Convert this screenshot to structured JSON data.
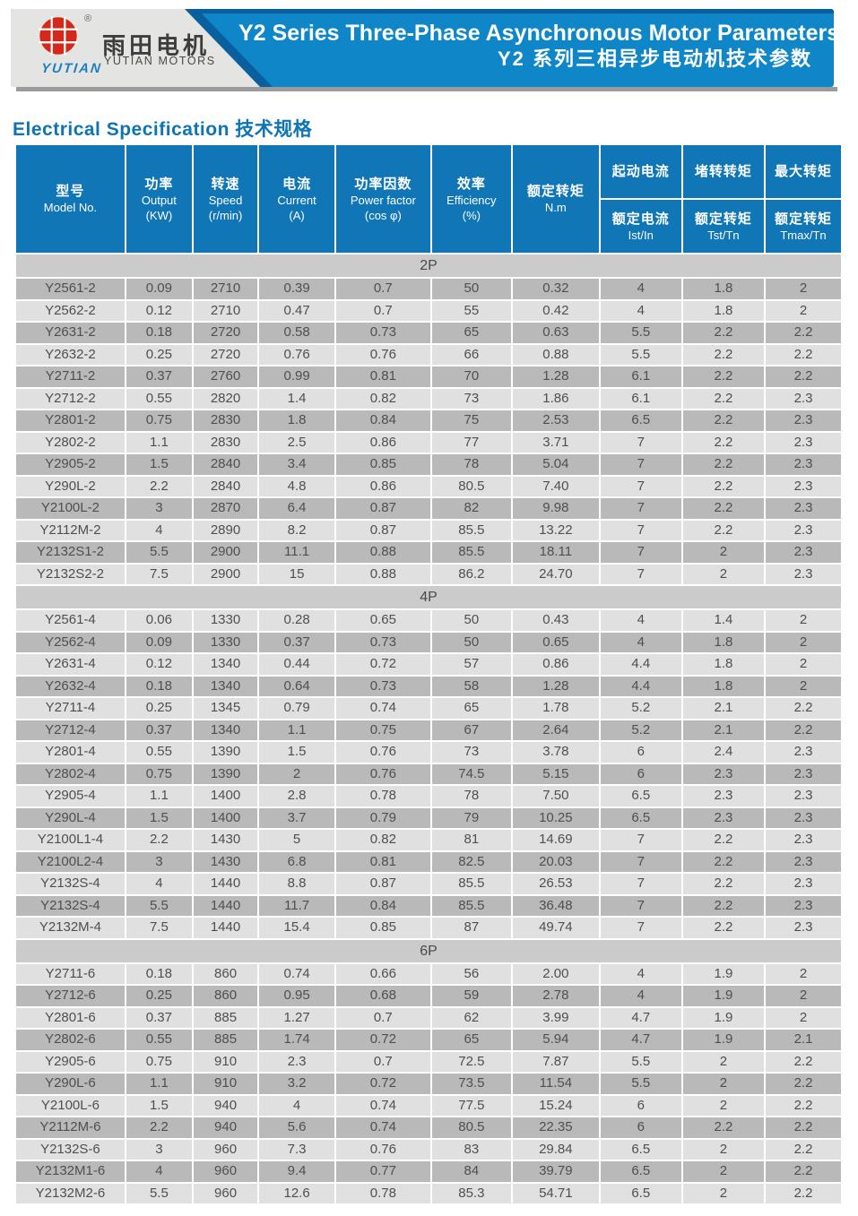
{
  "brand": {
    "name_zh": "雨田电机",
    "name_en": "YUTIAN MOTORS",
    "wordmark": "YUTIAN",
    "registered_mark": "®",
    "logo_color": "#d6281a"
  },
  "banner": {
    "title_en": "Y2 Series Three-Phase Asynchronous Motor Parameters",
    "title_zh": "Y2 系列三相异步电动机技术参数",
    "bg_color": "#0e86c7",
    "accent_navy": "#0a5f9e"
  },
  "spec_heading": {
    "en": "Electrical Specification",
    "zh": "技术规格"
  },
  "table": {
    "header_color": "#1076b6",
    "row_dark_color": "#b9b9b9",
    "row_light_color": "#e0e0e0",
    "band_color": "#cbcbcb",
    "columns": [
      {
        "zh": "型号",
        "en": "Model No."
      },
      {
        "zh": "功率",
        "en": "Output",
        "unit": "(KW)"
      },
      {
        "zh": "转速",
        "en": "Speed",
        "unit": "(r/min)"
      },
      {
        "zh": "电流",
        "en": "Current",
        "unit": "(A)"
      },
      {
        "zh": "功率因数",
        "en": "Power factor",
        "unit": "(cos φ)"
      },
      {
        "zh": "效率",
        "en": "Efficiency",
        "unit": "(%)"
      },
      {
        "zh": "额定转矩",
        "en": "N.m"
      }
    ],
    "split_columns": [
      {
        "top": "起动电流",
        "bottom_zh": "额定电流",
        "bottom_en": "Ist/In"
      },
      {
        "top": "堵转转矩",
        "bottom_zh": "额定转矩",
        "bottom_en": "Tst/Tn"
      },
      {
        "top": "最大转矩",
        "bottom_zh": "额定转矩",
        "bottom_en": "Tmax/Tn"
      }
    ],
    "sections": [
      {
        "label": "2P",
        "first_row_dark": true,
        "rows": [
          [
            "Y2561-2",
            "0.09",
            "2710",
            "0.39",
            "0.7",
            "50",
            "0.32",
            "4",
            "1.8",
            "2"
          ],
          [
            "Y2562-2",
            "0.12",
            "2710",
            "0.47",
            "0.7",
            "55",
            "0.42",
            "4",
            "1.8",
            "2"
          ],
          [
            "Y2631-2",
            "0.18",
            "2720",
            "0.58",
            "0.73",
            "65",
            "0.63",
            "5.5",
            "2.2",
            "2.2"
          ],
          [
            "Y2632-2",
            "0.25",
            "2720",
            "0.76",
            "0.76",
            "66",
            "0.88",
            "5.5",
            "2.2",
            "2.2"
          ],
          [
            "Y2711-2",
            "0.37",
            "2760",
            "0.99",
            "0.81",
            "70",
            "1.28",
            "6.1",
            "2.2",
            "2.2"
          ],
          [
            "Y2712-2",
            "0.55",
            "2820",
            "1.4",
            "0.82",
            "73",
            "1.86",
            "6.1",
            "2.2",
            "2.3"
          ],
          [
            "Y2801-2",
            "0.75",
            "2830",
            "1.8",
            "0.84",
            "75",
            "2.53",
            "6.5",
            "2.2",
            "2.3"
          ],
          [
            "Y2802-2",
            "1.1",
            "2830",
            "2.5",
            "0.86",
            "77",
            "3.71",
            "7",
            "2.2",
            "2.3"
          ],
          [
            "Y2905-2",
            "1.5",
            "2840",
            "3.4",
            "0.85",
            "78",
            "5.04",
            "7",
            "2.2",
            "2.3"
          ],
          [
            "Y290L-2",
            "2.2",
            "2840",
            "4.8",
            "0.86",
            "80.5",
            "7.40",
            "7",
            "2.2",
            "2.3"
          ],
          [
            "Y2100L-2",
            "3",
            "2870",
            "6.4",
            "0.87",
            "82",
            "9.98",
            "7",
            "2.2",
            "2.3"
          ],
          [
            "Y2112M-2",
            "4",
            "2890",
            "8.2",
            "0.87",
            "85.5",
            "13.22",
            "7",
            "2.2",
            "2.3"
          ],
          [
            "Y2132S1-2",
            "5.5",
            "2900",
            "11.1",
            "0.88",
            "85.5",
            "18.11",
            "7",
            "2",
            "2.3"
          ],
          [
            "Y2132S2-2",
            "7.5",
            "2900",
            "15",
            "0.88",
            "86.2",
            "24.70",
            "7",
            "2",
            "2.3"
          ]
        ]
      },
      {
        "label": "4P",
        "first_row_dark": false,
        "rows": [
          [
            "Y2561-4",
            "0.06",
            "1330",
            "0.28",
            "0.65",
            "50",
            "0.43",
            "4",
            "1.4",
            "2"
          ],
          [
            "Y2562-4",
            "0.09",
            "1330",
            "0.37",
            "0.73",
            "50",
            "0.65",
            "4",
            "1.8",
            "2"
          ],
          [
            "Y2631-4",
            "0.12",
            "1340",
            "0.44",
            "0.72",
            "57",
            "0.86",
            "4.4",
            "1.8",
            "2"
          ],
          [
            "Y2632-4",
            "0.18",
            "1340",
            "0.64",
            "0.73",
            "58",
            "1.28",
            "4.4",
            "1.8",
            "2"
          ],
          [
            "Y2711-4",
            "0.25",
            "1345",
            "0.79",
            "0.74",
            "65",
            "1.78",
            "5.2",
            "2.1",
            "2.2"
          ],
          [
            "Y2712-4",
            "0.37",
            "1340",
            "1.1",
            "0.75",
            "67",
            "2.64",
            "5.2",
            "2.1",
            "2.2"
          ],
          [
            "Y2801-4",
            "0.55",
            "1390",
            "1.5",
            "0.76",
            "73",
            "3.78",
            "6",
            "2.4",
            "2.3"
          ],
          [
            "Y2802-4",
            "0.75",
            "1390",
            "2",
            "0.76",
            "74.5",
            "5.15",
            "6",
            "2.3",
            "2.3"
          ],
          [
            "Y2905-4",
            "1.1",
            "1400",
            "2.8",
            "0.78",
            "78",
            "7.50",
            "6.5",
            "2.3",
            "2.3"
          ],
          [
            "Y290L-4",
            "1.5",
            "1400",
            "3.7",
            "0.79",
            "79",
            "10.25",
            "6.5",
            "2.3",
            "2.3"
          ],
          [
            "Y2100L1-4",
            "2.2",
            "1430",
            "5",
            "0.82",
            "81",
            "14.69",
            "7",
            "2.2",
            "2.3"
          ],
          [
            "Y2100L2-4",
            "3",
            "1430",
            "6.8",
            "0.81",
            "82.5",
            "20.03",
            "7",
            "2.2",
            "2.3"
          ],
          [
            "Y2132S-4",
            "4",
            "1440",
            "8.8",
            "0.87",
            "85.5",
            "26.53",
            "7",
            "2.2",
            "2.3"
          ],
          [
            "Y2132S-4",
            "5.5",
            "1440",
            "11.7",
            "0.84",
            "85.5",
            "36.48",
            "7",
            "2.2",
            "2.3"
          ],
          [
            "Y2132M-4",
            "7.5",
            "1440",
            "15.4",
            "0.85",
            "87",
            "49.74",
            "7",
            "2.2",
            "2.3"
          ]
        ]
      },
      {
        "label": "6P",
        "first_row_dark": false,
        "rows": [
          [
            "Y2711-6",
            "0.18",
            "860",
            "0.74",
            "0.66",
            "56",
            "2.00",
            "4",
            "1.9",
            "2"
          ],
          [
            "Y2712-6",
            "0.25",
            "860",
            "0.95",
            "0.68",
            "59",
            "2.78",
            "4",
            "1.9",
            "2"
          ],
          [
            "Y2801-6",
            "0.37",
            "885",
            "1.27",
            "0.7",
            "62",
            "3.99",
            "4.7",
            "1.9",
            "2"
          ],
          [
            "Y2802-6",
            "0.55",
            "885",
            "1.74",
            "0.72",
            "65",
            "5.94",
            "4.7",
            "1.9",
            "2.1"
          ],
          [
            "Y2905-6",
            "0.75",
            "910",
            "2.3",
            "0.7",
            "72.5",
            "7.87",
            "5.5",
            "2",
            "2.2"
          ],
          [
            "Y290L-6",
            "1.1",
            "910",
            "3.2",
            "0.72",
            "73.5",
            "11.54",
            "5.5",
            "2",
            "2.2"
          ],
          [
            "Y2100L-6",
            "1.5",
            "940",
            "4",
            "0.74",
            "77.5",
            "15.24",
            "6",
            "2",
            "2.2"
          ],
          [
            "Y2112M-6",
            "2.2",
            "940",
            "5.6",
            "0.74",
            "80.5",
            "22.35",
            "6",
            "2.2",
            "2.2"
          ],
          [
            "Y2132S-6",
            "3",
            "960",
            "7.3",
            "0.76",
            "83",
            "29.84",
            "6.5",
            "2",
            "2.2"
          ],
          [
            "Y2132M1-6",
            "4",
            "960",
            "9.4",
            "0.77",
            "84",
            "39.79",
            "6.5",
            "2",
            "2.2"
          ],
          [
            "Y2132M2-6",
            "5.5",
            "960",
            "12.6",
            "0.78",
            "85.3",
            "54.71",
            "6.5",
            "2",
            "2.2"
          ]
        ]
      }
    ]
  }
}
